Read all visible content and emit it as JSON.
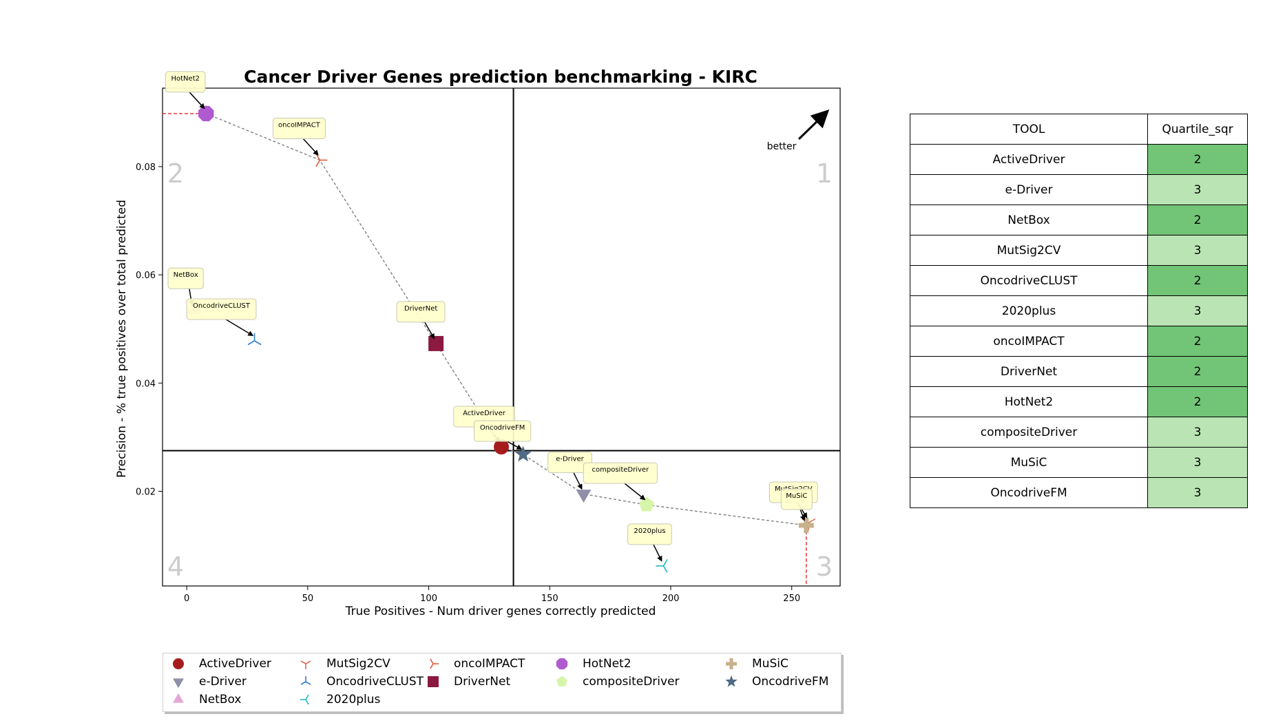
{
  "chart_data": {
    "type": "scatter",
    "title": "Cancer Driver Genes prediction benchmarking - KIRC",
    "xlabel": "True Positives - Num driver genes correctly predicted",
    "ylabel": "Precision - % true positives over total predicted",
    "xlim": [
      -10,
      270
    ],
    "ylim": [
      0.0025,
      0.0945
    ],
    "xticks": [
      0,
      50,
      100,
      150,
      200,
      250
    ],
    "yticks": [
      0.02,
      0.04,
      0.06,
      0.08
    ],
    "xtick_labels": [
      "0",
      "50",
      "100",
      "150",
      "200",
      "250"
    ],
    "ytick_labels": [
      "0.02",
      "0.04",
      "0.06",
      "0.08"
    ],
    "quartile_lines": {
      "x": 135,
      "y": 0.0275
    },
    "quadrant_labels": [
      "1",
      "2",
      "3",
      "4"
    ],
    "better_label": "better",
    "grid": false,
    "legend_position": "bottom",
    "points": [
      {
        "name": "ActiveDriver",
        "x": 130,
        "y": 0.0282,
        "marker": "circle",
        "color": "#a61c1c"
      },
      {
        "name": "e-Driver",
        "x": 164,
        "y": 0.0195,
        "marker": "triangle-down",
        "color": "#8f8fa8"
      },
      {
        "name": "NetBox",
        "x": 3,
        "y": 0.0535,
        "marker": "triangle-up",
        "color": "#e3a8d4"
      },
      {
        "name": "MutSig2CV",
        "x": 257,
        "y": 0.0142,
        "marker": "tri-down",
        "color": "#e06a5a"
      },
      {
        "name": "OncodriveCLUST",
        "x": 28,
        "y": 0.0478,
        "marker": "tri-up",
        "color": "#2a7fd4"
      },
      {
        "name": "2020plus",
        "x": 197,
        "y": 0.0062,
        "marker": "tri-left",
        "color": "#20b8c8"
      },
      {
        "name": "oncoIMPACT",
        "x": 55,
        "y": 0.0812,
        "marker": "tri-right",
        "color": "#e05a3a"
      },
      {
        "name": "DriverNet",
        "x": 103,
        "y": 0.0473,
        "marker": "square",
        "color": "#8c1a40"
      },
      {
        "name": "HotNet2",
        "x": 8,
        "y": 0.0898,
        "marker": "octagon",
        "color": "#b05ad0"
      },
      {
        "name": "compositeDriver",
        "x": 190,
        "y": 0.0175,
        "marker": "pentagon",
        "color": "#d7f5a8"
      },
      {
        "name": "MuSiC",
        "x": 256,
        "y": 0.0137,
        "marker": "plus",
        "color": "#c8b08a"
      },
      {
        "name": "OncodriveFM",
        "x": 139,
        "y": 0.0268,
        "marker": "star",
        "color": "#4e6a86"
      }
    ],
    "pareto_front": [
      "HotNet2",
      "oncoIMPACT",
      "DriverNet",
      "ActiveDriver",
      "OncodriveFM",
      "e-Driver",
      "compositeDriver",
      "MuSiC"
    ]
  },
  "table": {
    "headers": [
      "TOOL",
      "Quartile_sqr"
    ],
    "rows": [
      {
        "tool": "ActiveDriver",
        "quartile": "2"
      },
      {
        "tool": "e-Driver",
        "quartile": "3"
      },
      {
        "tool": "NetBox",
        "quartile": "2"
      },
      {
        "tool": "MutSig2CV",
        "quartile": "3"
      },
      {
        "tool": "OncodriveCLUST",
        "quartile": "2"
      },
      {
        "tool": "2020plus",
        "quartile": "3"
      },
      {
        "tool": "oncoIMPACT",
        "quartile": "2"
      },
      {
        "tool": "DriverNet",
        "quartile": "2"
      },
      {
        "tool": "HotNet2",
        "quartile": "2"
      },
      {
        "tool": "compositeDriver",
        "quartile": "3"
      },
      {
        "tool": "MuSiC",
        "quartile": "3"
      },
      {
        "tool": "OncodriveFM",
        "quartile": "3"
      }
    ],
    "colors": {
      "2": "#72c476",
      "3": "#bae4b3"
    }
  },
  "legend": {
    "items": [
      "ActiveDriver",
      "e-Driver",
      "NetBox",
      "MutSig2CV",
      "OncodriveCLUST",
      "2020plus",
      "oncoIMPACT",
      "DriverNet",
      "HotNet2",
      "compositeDriver",
      "MuSiC",
      "OncodriveFM"
    ]
  }
}
